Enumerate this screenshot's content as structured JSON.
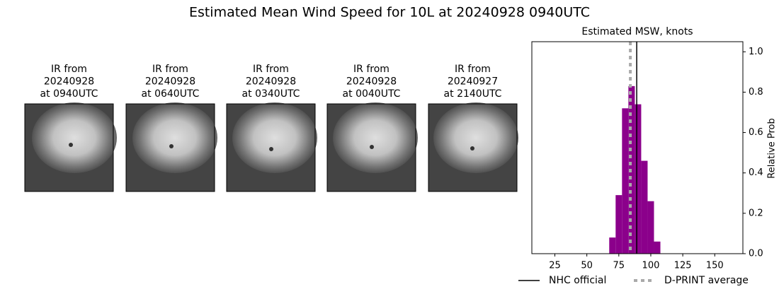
{
  "title": "Estimated Mean Wind Speed for 10L at 20240928 0940UTC",
  "panels": [
    {
      "lines": [
        "IR from",
        "20240928",
        "at 0940UTC"
      ]
    },
    {
      "lines": [
        "IR from",
        "20240928",
        "at 0640UTC"
      ]
    },
    {
      "lines": [
        "IR from",
        "20240928",
        "at 0340UTC"
      ]
    },
    {
      "lines": [
        "IR from",
        "20240928",
        "at 0040UTC"
      ]
    },
    {
      "lines": [
        "IR from",
        "20240927",
        "at 2140UTC"
      ]
    }
  ],
  "chart_data": {
    "type": "histogram",
    "title": "Estimated MSW, knots",
    "y_label": "Relative Prob",
    "bins": [
      67.5,
      72.5,
      77.5,
      82.5,
      87.5,
      92.5,
      97.5,
      102.5,
      107.5
    ],
    "values": [
      0.08,
      0.29,
      0.72,
      0.83,
      0.74,
      0.46,
      0.26,
      0.06
    ],
    "color": "#8b008b",
    "xlim": [
      7,
      172
    ],
    "xticks": [
      25,
      50,
      75,
      100,
      125,
      150
    ],
    "ylim": [
      0,
      1.05
    ],
    "yticks": [
      {
        "value": 0,
        "label": "0.0"
      },
      0.2,
      0.4,
      0.6,
      0.8,
      {
        "value": 1,
        "label": "1.0"
      }
    ],
    "reference_lines": [
      {
        "name": "NHC official",
        "value": 89,
        "color": "#000000",
        "style": "solid"
      },
      {
        "name": "D-PRINT average",
        "value": 84,
        "color": "#aaaaaa",
        "style": "dashed"
      }
    ]
  }
}
